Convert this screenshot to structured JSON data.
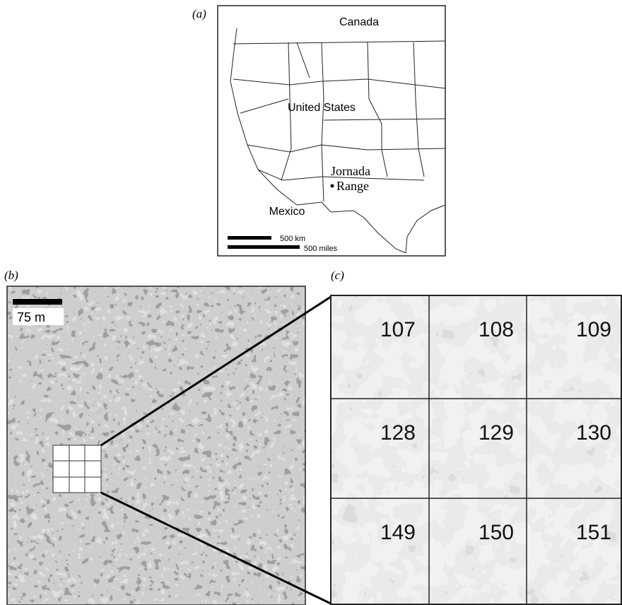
{
  "panels": {
    "a": {
      "label": "(a)",
      "country_labels": [
        "Canada",
        "United States",
        "Mexico"
      ],
      "site": [
        "Jornada",
        "Range"
      ],
      "scale": [
        "500 km",
        "500 miles"
      ]
    },
    "b": {
      "label": "(b)",
      "scale": "75 m"
    },
    "c": {
      "label": "(c)",
      "cells": [
        "107",
        "108",
        "109",
        "128",
        "129",
        "130",
        "149",
        "150",
        "151"
      ]
    }
  }
}
